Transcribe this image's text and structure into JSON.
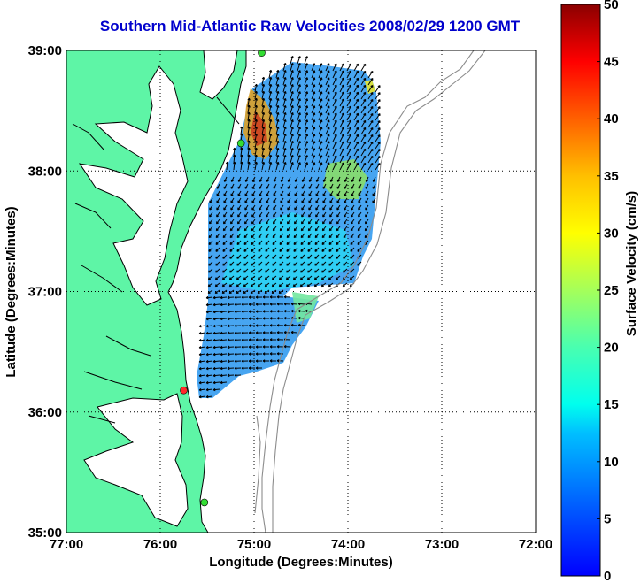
{
  "title": "Southern Mid-Atlantic Raw Velocities 2008/02/29 1200 GMT",
  "x_axis": {
    "label": "Longitude (Degrees:Minutes)",
    "ticks": [
      "77:00",
      "76:00",
      "75:00",
      "74:00",
      "73:00",
      "72:00"
    ]
  },
  "y_axis": {
    "label": "Latitude (Degrees:Minutes)",
    "ticks": [
      "35:00",
      "36:00",
      "37:00",
      "38:00",
      "39:00"
    ]
  },
  "colorbar": {
    "label": "Surface Velocity (cm/s)",
    "ticks": [
      "0",
      "5",
      "10",
      "15",
      "20",
      "25",
      "30",
      "35",
      "40",
      "45",
      "50"
    ],
    "range": [
      0,
      50
    ],
    "colormap": "jet"
  },
  "map": {
    "lon_range": [
      -77,
      -72
    ],
    "lat_range": [
      35,
      39
    ],
    "grid": "dotted",
    "land_color": "#5ef5a6",
    "water_color": "#ffffff",
    "coast_color": "#000000",
    "bathymetry_color": "#8c8c8c",
    "stations": [
      {
        "lon": -75.75,
        "lat": 36.18,
        "color": "#ff2a2a"
      },
      {
        "lon": -75.53,
        "lat": 35.25,
        "color": "#33dd33"
      },
      {
        "lon": -75.14,
        "lat": 38.23,
        "color": "#33dd33"
      },
      {
        "lon": -74.92,
        "lat": 38.98,
        "color": "#33dd33"
      }
    ]
  }
}
